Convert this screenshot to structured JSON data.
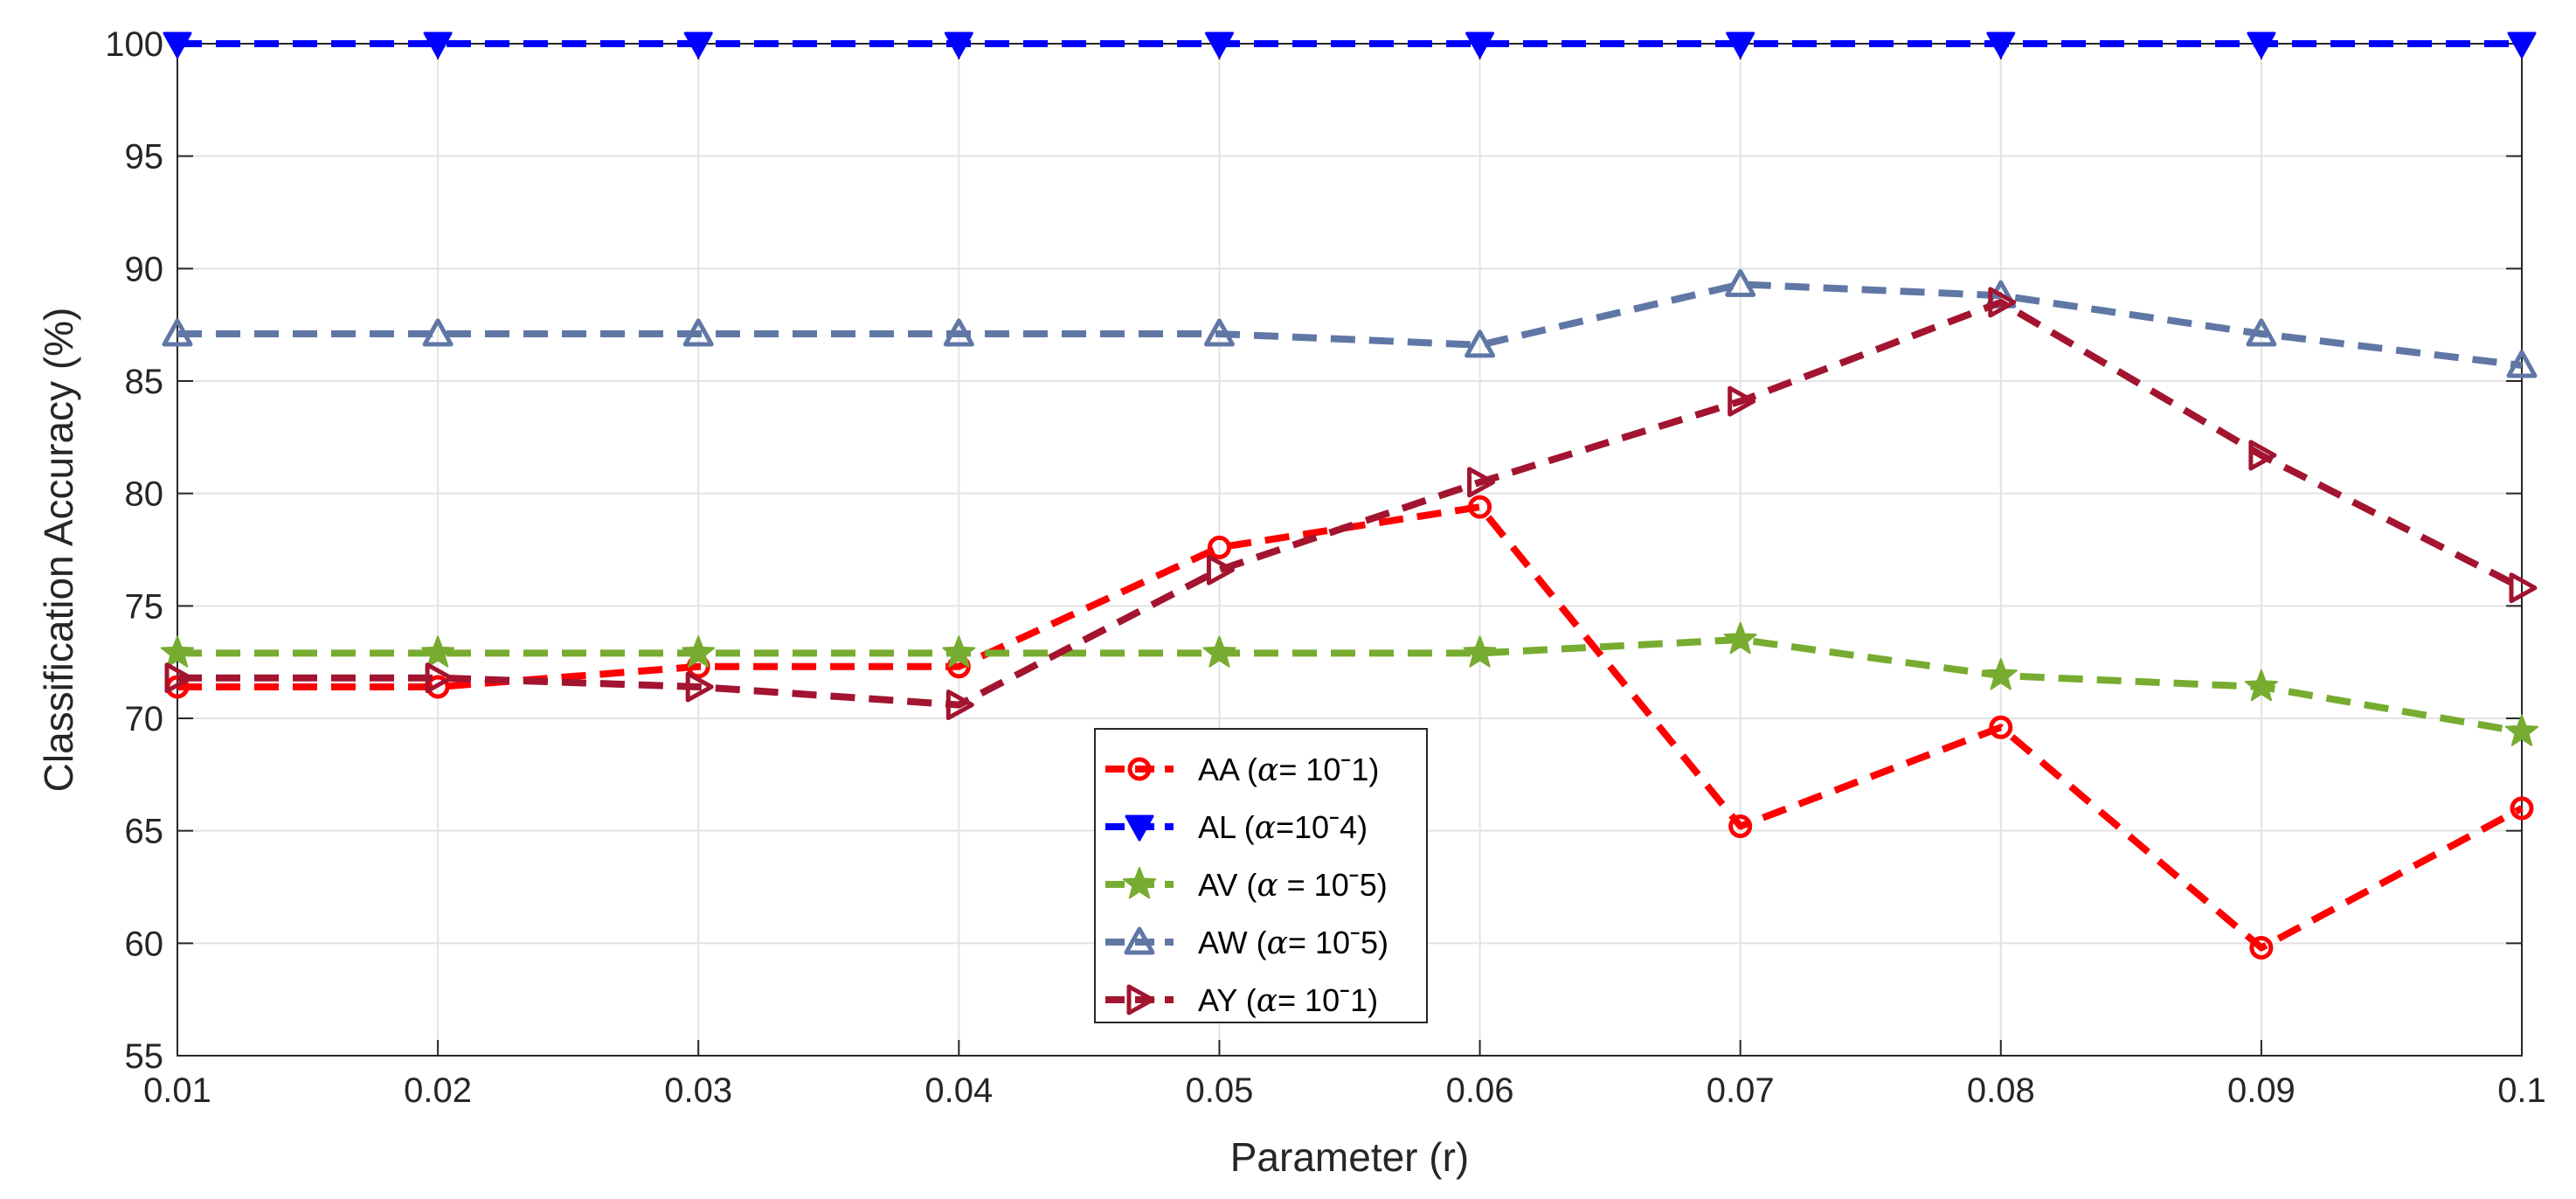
{
  "chart_data": {
    "type": "line",
    "xlabel": "Parameter (r)",
    "ylabel": "Classification Accuracy (%)",
    "xlim": [
      0.01,
      0.1
    ],
    "ylim": [
      55,
      100
    ],
    "x": [
      0.01,
      0.02,
      0.03,
      0.04,
      0.05,
      0.06,
      0.07,
      0.08,
      0.09,
      0.1
    ],
    "xticks": [
      "0.01",
      "0.02",
      "0.03",
      "0.04",
      "0.05",
      "0.06",
      "0.07",
      "0.08",
      "0.09",
      "0.1"
    ],
    "yticks": [
      "55",
      "60",
      "65",
      "70",
      "75",
      "80",
      "85",
      "90",
      "95",
      "100"
    ],
    "grid": true,
    "legend_position": "bottom-center",
    "series": [
      {
        "name": "AA",
        "legend_prefix": "AA (",
        "alpha_symbol": "α",
        "legend_suffix": "= 10ˉ1)",
        "color": "#ff0000",
        "marker": "circle",
        "values": [
          71.4,
          71.4,
          72.3,
          72.3,
          77.6,
          79.4,
          65.2,
          69.6,
          59.8,
          66.0
        ]
      },
      {
        "name": "AL",
        "legend_prefix": "AL (",
        "alpha_symbol": "α",
        "legend_suffix": "=10ˉ4)",
        "color": "#0000ff",
        "marker": "triangle-down",
        "values": [
          100,
          100,
          100,
          100,
          100,
          100,
          100,
          100,
          100,
          100
        ]
      },
      {
        "name": "AV",
        "legend_prefix": "AV (",
        "alpha_symbol": "α",
        "legend_suffix": " = 10ˉ5)",
        "color": "#77ac30",
        "marker": "star",
        "values": [
          72.9,
          72.9,
          72.9,
          72.9,
          72.9,
          72.9,
          73.5,
          71.9,
          71.4,
          69.4
        ]
      },
      {
        "name": "AW",
        "legend_prefix": "AW (",
        "alpha_symbol": "α",
        "legend_suffix": "= 10ˉ5)",
        "color": "#6077a6",
        "marker": "triangle-up",
        "values": [
          87.1,
          87.1,
          87.1,
          87.1,
          87.1,
          86.6,
          89.3,
          88.8,
          87.1,
          85.7
        ]
      },
      {
        "name": "AY",
        "legend_prefix": "AY (",
        "alpha_symbol": "α",
        "legend_suffix": "= 10ˉ1)",
        "color": "#a2142f",
        "marker": "triangle-right",
        "values": [
          71.8,
          71.8,
          71.4,
          70.6,
          76.6,
          80.5,
          84.1,
          88.5,
          81.7,
          75.8
        ]
      }
    ]
  }
}
